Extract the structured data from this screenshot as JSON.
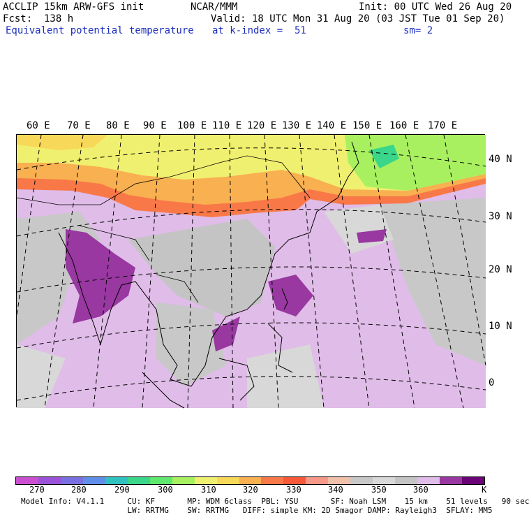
{
  "header": {
    "model_title": "ACCLIP 15km ARW-GFS init",
    "institution": "NCAR/MMM",
    "init": "Init: 00 UTC Wed 26 Aug 20",
    "forecast": "Fcst:  138 h",
    "valid": "Valid: 18 UTC Mon 31 Aug 20 (03 JST Tue 01 Sep 20)",
    "field_name": "Equivalent potential temperature",
    "level": "at k-index =  51",
    "smoothing": "sm= 2"
  },
  "map": {
    "longitude_labels": [
      "60 E",
      "70 E",
      "80 E",
      "90 E",
      "100 E",
      "110 E",
      "120 E",
      "130 E",
      "140 E",
      "150 E",
      "160 E",
      "170 E"
    ],
    "latitude_labels": [
      "40 N",
      "30 N",
      "20 N",
      "10 N",
      "0"
    ]
  },
  "colorbar": {
    "colors": [
      "#c94fd0",
      "#9a52d8",
      "#7a6fe0",
      "#5f8ee8",
      "#2fc2c0",
      "#3ad68a",
      "#5ee86e",
      "#a8f060",
      "#f0f070",
      "#f8d858",
      "#f8b050",
      "#f87848",
      "#f85838",
      "#f89888",
      "#f0c0a8",
      "#c8c8c8",
      "#d8d8d8",
      "#c4c4c4",
      "#e0bce8",
      "#9838a0",
      "#6c0478"
    ],
    "tick_labels": [
      "270",
      "280",
      "290",
      "300",
      "310",
      "320",
      "330",
      "340",
      "350",
      "360"
    ],
    "unit": "K"
  },
  "model_info": {
    "line1": "Model Info: V4.1.1     CU: KF       MP: WDM 6class  PBL: YSU       SF: Noah LSM    15 km    51 levels   90 sec",
    "line2": "                       LW: RRTMG    SW: RRTMG   DIFF: simple KM: 2D Smagor DAMP: Rayleigh3  SFLAY: MM5"
  }
}
